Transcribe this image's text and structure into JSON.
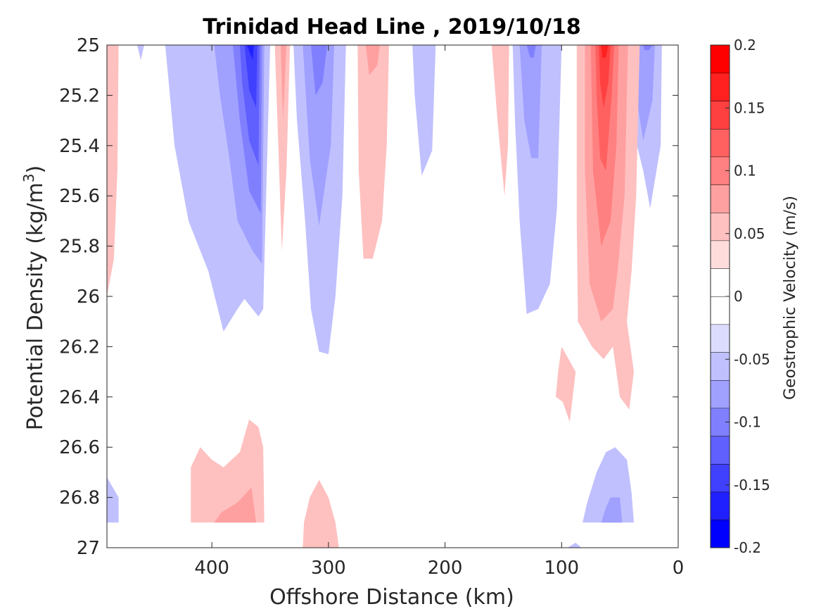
{
  "chart_data": {
    "type": "heatmap",
    "subtype": "filled-contour",
    "title": "Trinidad Head Line , 2019/10/18",
    "xlabel": "Offshore Distance (km)",
    "ylabel_main": "Potential Density (kg/m",
    "ylabel_sup": "3",
    "ylabel_end": ")",
    "colorbar_label": "Geostrophic Velocity (m/s)",
    "x_reversed": true,
    "y_reversed": true,
    "xlim": [
      0,
      490
    ],
    "ylim": [
      25,
      27
    ],
    "x_ticks": [
      {
        "value": 400,
        "label": "400"
      },
      {
        "value": 300,
        "label": "300"
      },
      {
        "value": 200,
        "label": "200"
      },
      {
        "value": 100,
        "label": "100"
      },
      {
        "value": 0,
        "label": "0"
      }
    ],
    "y_ticks": [
      {
        "value": 25,
        "label": "25"
      },
      {
        "value": 25.2,
        "label": "25.2"
      },
      {
        "value": 25.4,
        "label": "25.4"
      },
      {
        "value": 25.6,
        "label": "25.6"
      },
      {
        "value": 25.8,
        "label": "25.8"
      },
      {
        "value": 26,
        "label": "26"
      },
      {
        "value": 26.2,
        "label": "26.2"
      },
      {
        "value": 26.4,
        "label": "26.4"
      },
      {
        "value": 26.6,
        "label": "26.6"
      },
      {
        "value": 26.8,
        "label": "26.8"
      },
      {
        "value": 27,
        "label": "27"
      }
    ],
    "colorbar": {
      "range": [
        -0.2,
        0.2
      ],
      "levels": [
        -0.2,
        -0.175,
        -0.15,
        -0.125,
        -0.1,
        -0.075,
        -0.05,
        -0.025,
        0,
        0.025,
        0.05,
        0.075,
        0.1,
        0.125,
        0.15,
        0.175,
        0.2
      ],
      "colors": [
        "#0000ff",
        "#2020ff",
        "#4040ff",
        "#6060ff",
        "#8080ff",
        "#a0a0ff",
        "#c0c0ff",
        "#dcdcff",
        "#ffffff",
        "#ffffff",
        "#ffdcdc",
        "#ffc0c0",
        "#ffa0a0",
        "#ff8080",
        "#ff6060",
        "#ff4040",
        "#ff2020",
        "#ff0000"
      ],
      "ticks": [
        {
          "value": 0.2,
          "label": "0.2"
        },
        {
          "value": 0.15,
          "label": "0.15"
        },
        {
          "value": 0.1,
          "label": "0.1"
        },
        {
          "value": 0.05,
          "label": "0.05"
        },
        {
          "value": 0,
          "label": "0"
        },
        {
          "value": -0.05,
          "label": "-0.05"
        },
        {
          "value": -0.1,
          "label": "-0.1"
        },
        {
          "value": -0.15,
          "label": "-0.15"
        },
        {
          "value": -0.2,
          "label": "-0.2"
        }
      ]
    },
    "regions": [
      {
        "name": "neg-400-l1",
        "level": -0.05,
        "points": [
          [
            440,
            25
          ],
          [
            350,
            25
          ],
          [
            356,
            26.05
          ],
          [
            360,
            26.08
          ],
          [
            372,
            26.01
          ],
          [
            378,
            26.05
          ],
          [
            390,
            26.14
          ],
          [
            403,
            25.9
          ],
          [
            420,
            25.7
          ],
          [
            432,
            25.4
          ],
          [
            438,
            25.1
          ]
        ]
      },
      {
        "name": "neg-400-l2",
        "level": -0.075,
        "points": [
          [
            398,
            25
          ],
          [
            355,
            25
          ],
          [
            357,
            25.87
          ],
          [
            365,
            25.82
          ],
          [
            378,
            25.7
          ],
          [
            385,
            25.45
          ],
          [
            393,
            25.2
          ]
        ]
      },
      {
        "name": "neg-400-l3",
        "level": -0.1,
        "points": [
          [
            382,
            25
          ],
          [
            357,
            25
          ],
          [
            358,
            25.67
          ],
          [
            368,
            25.58
          ],
          [
            376,
            25.3
          ],
          [
            380,
            25.1
          ]
        ]
      },
      {
        "name": "neg-400-l4",
        "level": -0.125,
        "points": [
          [
            376,
            25
          ],
          [
            359,
            25
          ],
          [
            360,
            25.48
          ],
          [
            368,
            25.38
          ],
          [
            374,
            25.15
          ]
        ]
      },
      {
        "name": "neg-400-l5",
        "level": -0.15,
        "points": [
          [
            372,
            25
          ],
          [
            361,
            25
          ],
          [
            362,
            25.25
          ],
          [
            368,
            25.18
          ]
        ]
      },
      {
        "name": "neg-400-l6",
        "level": -0.175,
        "points": [
          [
            370,
            25
          ],
          [
            364,
            25
          ],
          [
            365,
            25.06
          ]
        ]
      },
      {
        "name": "neg-310-l1",
        "level": -0.05,
        "points": [
          [
            330,
            25
          ],
          [
            285,
            25
          ],
          [
            288,
            25.6
          ],
          [
            294,
            26.0
          ],
          [
            300,
            26.23
          ],
          [
            308,
            26.22
          ],
          [
            315,
            26.05
          ],
          [
            320,
            25.7
          ],
          [
            327,
            25.3
          ]
        ]
      },
      {
        "name": "neg-310-l2",
        "level": -0.075,
        "points": [
          [
            322,
            25
          ],
          [
            295,
            25
          ],
          [
            298,
            25.4
          ],
          [
            308,
            25.72
          ],
          [
            316,
            25.45
          ]
        ]
      },
      {
        "name": "neg-310-l3",
        "level": -0.1,
        "points": [
          [
            315,
            25
          ],
          [
            301,
            25
          ],
          [
            305,
            25.15
          ],
          [
            311,
            25.2
          ]
        ]
      },
      {
        "name": "neg-215-l1",
        "level": -0.05,
        "points": [
          [
            228,
            25
          ],
          [
            208,
            25
          ],
          [
            211,
            25.42
          ],
          [
            220,
            25.52
          ],
          [
            226,
            25.2
          ]
        ]
      },
      {
        "name": "neg-125-l1",
        "level": -0.05,
        "points": [
          [
            142,
            25
          ],
          [
            100,
            25
          ],
          [
            104,
            25.65
          ],
          [
            110,
            25.95
          ],
          [
            120,
            26.05
          ],
          [
            130,
            26.07
          ],
          [
            136,
            25.7
          ],
          [
            140,
            25.3
          ]
        ]
      },
      {
        "name": "neg-125-l2",
        "level": -0.075,
        "points": [
          [
            136,
            25
          ],
          [
            117,
            25
          ],
          [
            120,
            25.45
          ],
          [
            126,
            25.45
          ],
          [
            132,
            25.3
          ]
        ]
      },
      {
        "name": "neg-125-l3",
        "level": -0.1,
        "points": [
          [
            130,
            25
          ],
          [
            122,
            25
          ],
          [
            124,
            25.05
          ],
          [
            127,
            25.05
          ]
        ]
      },
      {
        "name": "neg-30-l1",
        "level": -0.05,
        "points": [
          [
            48,
            25
          ],
          [
            14,
            25
          ],
          [
            15,
            25.4
          ],
          [
            24,
            25.65
          ],
          [
            30,
            25.5
          ],
          [
            38,
            25.35
          ],
          [
            44,
            25.15
          ]
        ]
      },
      {
        "name": "neg-30-l2",
        "level": -0.075,
        "points": [
          [
            40,
            25
          ],
          [
            20,
            25
          ],
          [
            22,
            25.22
          ],
          [
            30,
            25.38
          ],
          [
            36,
            25.2
          ]
        ]
      },
      {
        "name": "neg-30-l3",
        "level": -0.1,
        "points": [
          [
            30,
            25
          ],
          [
            22,
            25
          ],
          [
            25,
            25.02
          ],
          [
            29,
            25.02
          ]
        ]
      },
      {
        "name": "neg-deep-60",
        "level": -0.05,
        "points": [
          [
            82,
            26.9
          ],
          [
            38,
            26.9
          ],
          [
            40,
            26.78
          ],
          [
            44,
            26.65
          ],
          [
            54,
            26.6
          ],
          [
            62,
            26.62
          ],
          [
            70,
            26.7
          ],
          [
            78,
            26.82
          ]
        ]
      },
      {
        "name": "neg-deep-60-l2",
        "level": -0.075,
        "points": [
          [
            66,
            26.9
          ],
          [
            48,
            26.9
          ],
          [
            50,
            26.8
          ],
          [
            58,
            26.8
          ],
          [
            62,
            26.84
          ]
        ]
      },
      {
        "name": "neg-deep-470",
        "level": -0.05,
        "points": [
          [
            490,
            26.72
          ],
          [
            480,
            26.8
          ],
          [
            480,
            26.9
          ],
          [
            490,
            26.9
          ]
        ]
      },
      {
        "name": "neg-deep-90",
        "level": -0.05,
        "points": [
          [
            95,
            27
          ],
          [
            88,
            26.98
          ],
          [
            83,
            27
          ]
        ]
      },
      {
        "name": "neg-top-460",
        "level": -0.05,
        "points": [
          [
            464,
            25
          ],
          [
            458,
            25
          ],
          [
            461,
            25.06
          ]
        ]
      },
      {
        "name": "pos-490-l1",
        "level": 0.05,
        "points": [
          [
            490,
            25
          ],
          [
            480,
            25
          ],
          [
            481,
            25.5
          ],
          [
            484,
            25.85
          ],
          [
            490,
            26.0
          ]
        ]
      },
      {
        "name": "pos-340-l1",
        "level": 0.05,
        "points": [
          [
            346,
            25
          ],
          [
            333,
            25
          ],
          [
            336,
            25.5
          ],
          [
            340,
            25.82
          ],
          [
            343,
            25.4
          ]
        ]
      },
      {
        "name": "pos-340-l2",
        "level": 0.075,
        "points": [
          [
            341,
            25
          ],
          [
            336,
            25
          ],
          [
            338,
            25.2
          ],
          [
            339,
            25.3
          ]
        ]
      },
      {
        "name": "pos-262-l1",
        "level": 0.05,
        "points": [
          [
            275,
            25
          ],
          [
            248,
            25
          ],
          [
            250,
            25.4
          ],
          [
            254,
            25.7
          ],
          [
            262,
            25.85
          ],
          [
            270,
            25.85
          ],
          [
            274,
            25.5
          ]
        ]
      },
      {
        "name": "pos-262-l2",
        "level": 0.075,
        "points": [
          [
            268,
            25
          ],
          [
            256,
            25
          ],
          [
            258,
            25.08
          ],
          [
            265,
            25.12
          ]
        ]
      },
      {
        "name": "pos-152-l1",
        "level": 0.05,
        "points": [
          [
            160,
            25
          ],
          [
            145,
            25
          ],
          [
            146,
            25.4
          ],
          [
            149,
            25.6
          ],
          [
            155,
            25.3
          ]
        ]
      },
      {
        "name": "pos-60-l1",
        "level": 0.05,
        "points": [
          [
            87,
            25
          ],
          [
            33,
            25
          ],
          [
            36,
            25.6
          ],
          [
            40,
            25.9
          ],
          [
            44,
            26.1
          ],
          [
            38,
            26.3
          ],
          [
            42,
            26.45
          ],
          [
            50,
            26.4
          ],
          [
            56,
            26.2
          ],
          [
            64,
            26.25
          ],
          [
            74,
            26.2
          ],
          [
            86,
            26.1
          ],
          [
            87,
            25.7
          ]
        ]
      },
      {
        "name": "pos-60-l2",
        "level": 0.075,
        "points": [
          [
            80,
            25
          ],
          [
            43,
            25
          ],
          [
            46,
            25.6
          ],
          [
            52,
            25.9
          ],
          [
            56,
            26.05
          ],
          [
            66,
            26.1
          ],
          [
            76,
            25.95
          ],
          [
            80,
            25.5
          ]
        ]
      },
      {
        "name": "pos-60-l3",
        "level": 0.1,
        "points": [
          [
            75,
            25
          ],
          [
            51,
            25
          ],
          [
            53,
            25.4
          ],
          [
            58,
            25.7
          ],
          [
            66,
            25.8
          ],
          [
            73,
            25.5
          ]
        ]
      },
      {
        "name": "pos-60-l4",
        "level": 0.125,
        "points": [
          [
            71,
            25
          ],
          [
            55,
            25
          ],
          [
            57,
            25.2
          ],
          [
            62,
            25.5
          ],
          [
            67,
            25.45
          ],
          [
            70,
            25.2
          ]
        ]
      },
      {
        "name": "pos-60-l5",
        "level": 0.15,
        "points": [
          [
            68,
            25
          ],
          [
            58,
            25
          ],
          [
            60,
            25.15
          ],
          [
            64,
            25.25
          ],
          [
            67,
            25.15
          ]
        ]
      },
      {
        "name": "pos-60-l6",
        "level": 0.175,
        "points": [
          [
            66,
            25
          ],
          [
            60,
            25
          ],
          [
            62,
            25.05
          ],
          [
            65,
            25.05
          ]
        ]
      },
      {
        "name": "pos-95",
        "level": 0.05,
        "points": [
          [
            100,
            26.2
          ],
          [
            88,
            26.3
          ],
          [
            93,
            26.5
          ],
          [
            99,
            26.42
          ],
          [
            105,
            26.4
          ],
          [
            103,
            26.3
          ]
        ]
      },
      {
        "name": "pos-deep-380-l1",
        "level": 0.05,
        "points": [
          [
            418,
            26.9
          ],
          [
            355,
            26.9
          ],
          [
            356,
            26.6
          ],
          [
            360,
            26.52
          ],
          [
            368,
            26.49
          ],
          [
            376,
            26.62
          ],
          [
            390,
            26.68
          ],
          [
            400,
            26.65
          ],
          [
            410,
            26.6
          ],
          [
            418,
            26.68
          ]
        ]
      },
      {
        "name": "pos-deep-380-l2",
        "level": 0.075,
        "points": [
          [
            398,
            26.9
          ],
          [
            362,
            26.9
          ],
          [
            366,
            26.76
          ],
          [
            378,
            26.82
          ],
          [
            392,
            26.86
          ]
        ]
      },
      {
        "name": "pos-deep-305",
        "level": 0.05,
        "points": [
          [
            322,
            27
          ],
          [
            291,
            27
          ],
          [
            294,
            26.9
          ],
          [
            300,
            26.8
          ],
          [
            308,
            26.73
          ],
          [
            316,
            26.8
          ],
          [
            321,
            26.9
          ]
        ]
      }
    ]
  }
}
